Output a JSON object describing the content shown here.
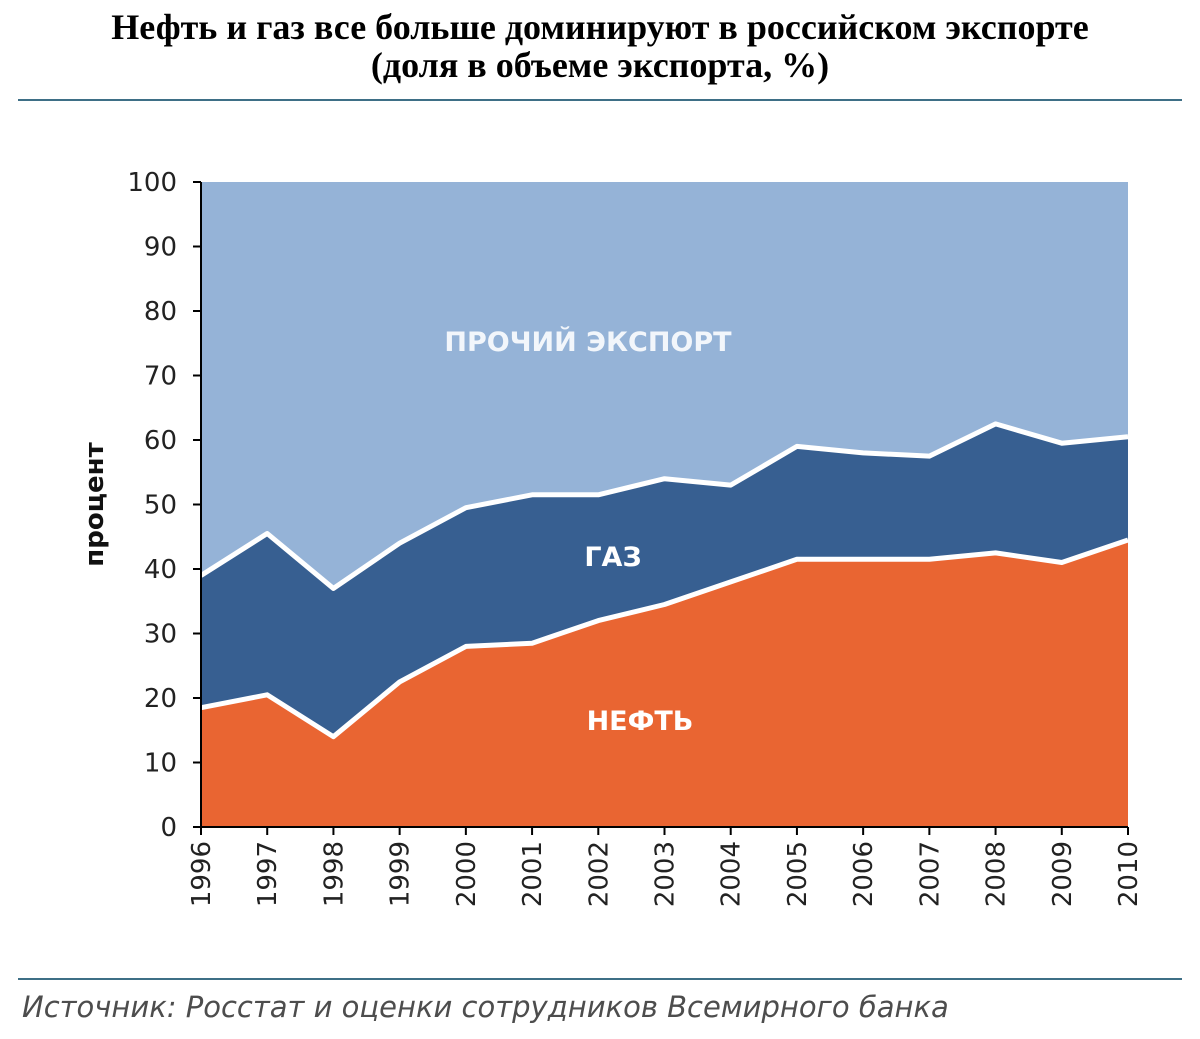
{
  "title": {
    "line1": "Нефть и газ все больше доминируют в российском экспорте",
    "line2": "(доля в объеме экспорта, %)"
  },
  "source": "Источник: Росстат и оценки сотрудников Всемирного банка",
  "chart_data": {
    "type": "area",
    "stacked": true,
    "x": [
      "1996",
      "1997",
      "1998",
      "1999",
      "2000",
      "2001",
      "2002",
      "2003",
      "2004",
      "2005",
      "2006",
      "2007",
      "2008",
      "2009",
      "2010"
    ],
    "series": [
      {
        "name": "НЕФТЬ",
        "color": "#e96532",
        "values": [
          18.5,
          20.5,
          14,
          22.5,
          28,
          28.5,
          32,
          34.5,
          38,
          41.5,
          41.5,
          41.5,
          42.5,
          41,
          44.5
        ]
      },
      {
        "name": "ГАЗ",
        "color": "#375f91",
        "values": [
          20.5,
          25,
          23,
          21.5,
          21.5,
          23,
          19.5,
          19.5,
          15,
          17.5,
          16.5,
          16,
          20,
          18.5,
          16
        ]
      },
      {
        "name": "ПРОЧИЙ ЭКСПОРТ",
        "color": "#95b3d7",
        "values": [
          61,
          54.5,
          63,
          56,
          50.5,
          48.5,
          48.5,
          46,
          47,
          41,
          42,
          42.5,
          37.5,
          40.5,
          39.5
        ]
      }
    ],
    "ylabel": "процент",
    "ylim": [
      0,
      100
    ],
    "yticks": [
      0,
      10,
      20,
      30,
      40,
      50,
      60,
      70,
      80,
      90,
      100
    ],
    "grid": false,
    "legend": "labels inside areas"
  }
}
